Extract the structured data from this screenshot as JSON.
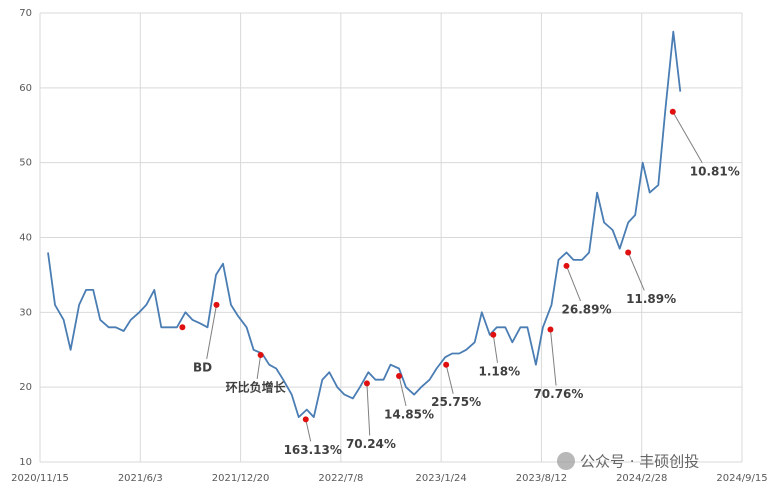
{
  "chart_data": {
    "type": "line",
    "xlim": [
      "2020/11/15",
      "2024/9/15"
    ],
    "xticks": [
      "2020/11/15",
      "2021/6/3",
      "2021/12/20",
      "2022/7/8",
      "2023/1/24",
      "2023/8/12",
      "2024/2/28",
      "2024/9/15"
    ],
    "ylim": [
      10,
      70
    ],
    "yticks": [
      10,
      20,
      30,
      40,
      50,
      60,
      70
    ],
    "grid": true,
    "series": [
      {
        "color": "#4a7db3",
        "x": [
          "2020/12/1",
          "2020/12/15",
          "2021/1/1",
          "2021/1/15",
          "2021/2/1",
          "2021/2/15",
          "2021/3/1",
          "2021/3/15",
          "2021/4/1",
          "2021/4/15",
          "2021/5/1",
          "2021/5/15",
          "2021/6/1",
          "2021/6/15",
          "2021/7/1",
          "2021/7/15",
          "2021/8/1",
          "2021/8/15",
          "2021/9/1",
          "2021/9/15",
          "2021/10/1",
          "2021/10/15",
          "2021/11/1",
          "2021/11/15",
          "2021/12/1",
          "2021/12/15",
          "2022/1/1",
          "2022/1/15",
          "2022/2/1",
          "2022/2/15",
          "2022/3/1",
          "2022/3/15",
          "2022/4/1",
          "2022/4/15",
          "2022/5/1",
          "2022/5/15",
          "2022/6/1",
          "2022/6/15",
          "2022/7/1",
          "2022/7/15",
          "2022/8/1",
          "2022/8/15",
          "2022/9/1",
          "2022/9/15",
          "2022/10/1",
          "2022/10/15",
          "2022/11/1",
          "2022/11/15",
          "2022/12/1",
          "2022/12/15",
          "2023/1/1",
          "2023/1/15",
          "2023/2/1",
          "2023/2/15",
          "2023/3/1",
          "2023/3/15",
          "2023/4/1",
          "2023/4/15",
          "2023/5/1",
          "2023/5/15",
          "2023/6/1",
          "2023/6/15",
          "2023/7/1",
          "2023/7/15",
          "2023/8/1",
          "2023/8/15",
          "2023/9/1",
          "2023/9/15",
          "2023/10/1",
          "2023/10/15",
          "2023/11/1",
          "2023/11/15",
          "2023/12/1",
          "2023/12/15",
          "2024/1/1",
          "2024/1/15",
          "2024/2/1",
          "2024/2/15",
          "2024/3/1",
          "2024/3/15",
          "2024/4/1",
          "2024/4/15",
          "2024/5/1",
          "2024/5/15"
        ],
        "values": [
          38,
          31,
          29,
          25,
          31,
          33,
          33,
          29,
          28,
          28,
          27.5,
          29,
          30,
          31,
          33,
          28,
          28,
          28,
          30,
          29,
          28.5,
          28,
          35,
          36.5,
          31,
          29.5,
          28,
          25,
          24.5,
          23,
          22.5,
          21,
          19,
          16,
          17,
          16,
          21,
          22,
          20,
          19,
          18.5,
          20,
          22,
          21,
          21,
          23,
          22.5,
          20,
          19,
          20,
          21,
          22.5,
          24,
          24.5,
          24.5,
          25,
          26,
          30,
          27,
          28,
          28,
          26,
          28,
          28,
          23,
          28,
          31,
          37,
          38,
          37,
          37,
          38,
          46,
          42,
          41,
          38.5,
          42,
          43,
          50,
          46,
          47,
          57,
          67.5,
          59.5
        ]
      }
    ],
    "points": [
      {
        "x": "2021/8/26",
        "y": 28
      },
      {
        "x": "2021/11/2",
        "y": 31,
        "label": "BD"
      },
      {
        "x": "2022/1/29",
        "y": 24.3,
        "label": "环比负增长"
      },
      {
        "x": "2022/4/29",
        "y": 15.7,
        "label": "163.13%"
      },
      {
        "x": "2022/8/29",
        "y": 20.5,
        "label": "70.24%"
      },
      {
        "x": "2022/11/1",
        "y": 21.5,
        "label": "14.85%"
      },
      {
        "x": "2023/2/3",
        "y": 23,
        "label": "25.75%"
      },
      {
        "x": "2023/5/8",
        "y": 27,
        "label": "1.18%"
      },
      {
        "x": "2023/8/30",
        "y": 27.7,
        "label": "70.76%"
      },
      {
        "x": "2023/10/1",
        "y": 36.2,
        "label": "26.89%"
      },
      {
        "x": "2024/2/1",
        "y": 38,
        "label": "11.89%"
      },
      {
        "x": "2024/4/30",
        "y": 56.8,
        "label": "10.81%"
      }
    ],
    "watermark": "公众号 · 丰硕创投"
  }
}
